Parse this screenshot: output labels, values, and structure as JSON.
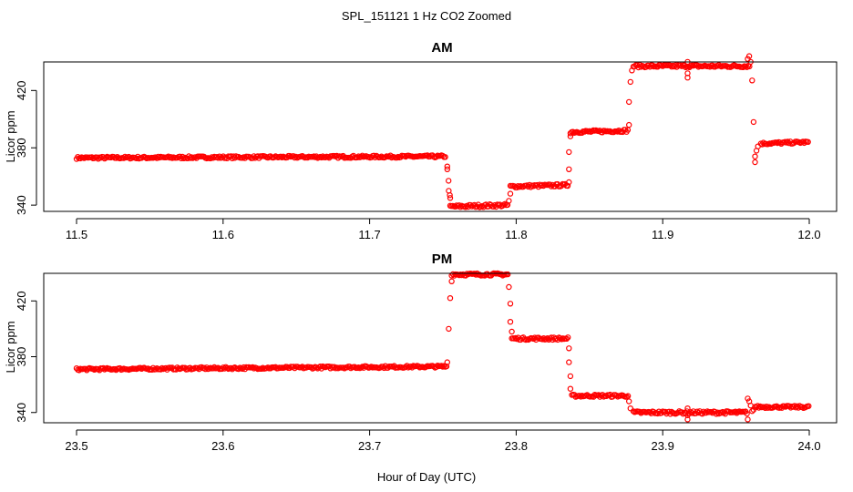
{
  "figure": {
    "title": "SPL_151121  1 Hz CO2 Zoomed",
    "xlabel": "Hour of Day (UTC)"
  },
  "chart_data": [
    {
      "type": "scatter",
      "title": "AM",
      "xlabel": "Hour of Day (UTC)",
      "ylabel": "Licor ppm",
      "xlim": [
        11.5,
        12.0
      ],
      "ylim": [
        335,
        445
      ],
      "xticks": [
        "11.5",
        "11.6",
        "11.7",
        "11.8",
        "11.9",
        "12.0"
      ],
      "yticks": [
        "340",
        "380",
        "420"
      ],
      "marker": "open-circle",
      "color": "#ff0000",
      "grid": false,
      "segments": [
        {
          "x": [
            11.5,
            11.752
          ],
          "y": [
            373,
            374
          ],
          "jitter": 0.8
        },
        {
          "x": [
            11.753,
            11.755
          ],
          "y": [
            367,
            344
          ],
          "jitter": 0
        },
        {
          "x": [
            11.755,
            11.795
          ],
          "y": [
            339,
            340
          ],
          "jitter": 1.0
        },
        {
          "x": [
            11.796,
            11.836
          ],
          "y": [
            353,
            354
          ],
          "jitter": 0.9
        },
        {
          "x": [
            11.837,
            11.877
          ],
          "y": [
            391,
            392
          ],
          "jitter": 0.9
        },
        {
          "x": [
            11.88,
            11.96
          ],
          "y": [
            437,
            437
          ],
          "jitter": 0.9
        },
        {
          "x": [
            11.967,
            12.0
          ],
          "y": [
            383,
            384
          ],
          "jitter": 0.8
        }
      ],
      "transition_points": [
        {
          "x": 11.753,
          "y": 365
        },
        {
          "x": 11.754,
          "y": 350
        },
        {
          "x": 11.755,
          "y": 345
        },
        {
          "x": 11.795,
          "y": 343
        },
        {
          "x": 11.796,
          "y": 348
        },
        {
          "x": 11.836,
          "y": 356
        },
        {
          "x": 11.836,
          "y": 365
        },
        {
          "x": 11.836,
          "y": 377
        },
        {
          "x": 11.837,
          "y": 388
        },
        {
          "x": 11.877,
          "y": 396
        },
        {
          "x": 11.877,
          "y": 412
        },
        {
          "x": 11.878,
          "y": 426
        },
        {
          "x": 11.879,
          "y": 434
        },
        {
          "x": 11.917,
          "y": 440
        },
        {
          "x": 11.917,
          "y": 432
        },
        {
          "x": 11.917,
          "y": 429
        },
        {
          "x": 11.958,
          "y": 442
        },
        {
          "x": 11.959,
          "y": 444
        },
        {
          "x": 11.96,
          "y": 440
        },
        {
          "x": 11.961,
          "y": 427
        },
        {
          "x": 11.962,
          "y": 398
        },
        {
          "x": 11.963,
          "y": 374
        },
        {
          "x": 11.963,
          "y": 370
        },
        {
          "x": 11.964,
          "y": 378
        },
        {
          "x": 11.965,
          "y": 381
        }
      ]
    },
    {
      "type": "scatter",
      "title": "PM",
      "xlabel": "Hour of Day (UTC)",
      "ylabel": "Licor ppm",
      "xlim": [
        23.5,
        24.0
      ],
      "ylim": [
        332,
        445
      ],
      "xticks": [
        "23.5",
        "23.6",
        "23.7",
        "23.8",
        "23.9",
        "24.0"
      ],
      "yticks": [
        "340",
        "380",
        "420"
      ],
      "marker": "open-circle",
      "color": "#ff0000",
      "grid": false,
      "segments": [
        {
          "x": [
            23.5,
            23.753
          ],
          "y": [
            371,
            373
          ],
          "jitter": 0.8
        },
        {
          "x": [
            23.756,
            23.795
          ],
          "y": [
            439,
            439
          ],
          "jitter": 0.9
        },
        {
          "x": [
            23.797,
            23.836
          ],
          "y": [
            393,
            393
          ],
          "jitter": 0.9
        },
        {
          "x": [
            23.838,
            23.877
          ],
          "y": [
            352,
            352
          ],
          "jitter": 0.9
        },
        {
          "x": [
            23.88,
            23.958
          ],
          "y": [
            340,
            340
          ],
          "jitter": 1.0
        },
        {
          "x": [
            23.963,
            24.0
          ],
          "y": [
            344,
            344
          ],
          "jitter": 0.8
        }
      ],
      "transition_points": [
        {
          "x": 23.753,
          "y": 376
        },
        {
          "x": 23.754,
          "y": 400
        },
        {
          "x": 23.755,
          "y": 422
        },
        {
          "x": 23.756,
          "y": 434
        },
        {
          "x": 23.795,
          "y": 430
        },
        {
          "x": 23.796,
          "y": 418
        },
        {
          "x": 23.796,
          "y": 405
        },
        {
          "x": 23.797,
          "y": 398
        },
        {
          "x": 23.836,
          "y": 386
        },
        {
          "x": 23.836,
          "y": 376
        },
        {
          "x": 23.837,
          "y": 366
        },
        {
          "x": 23.837,
          "y": 357
        },
        {
          "x": 23.877,
          "y": 348
        },
        {
          "x": 23.878,
          "y": 343
        },
        {
          "x": 23.917,
          "y": 343
        },
        {
          "x": 23.917,
          "y": 338
        },
        {
          "x": 23.917,
          "y": 335
        },
        {
          "x": 23.958,
          "y": 350
        },
        {
          "x": 23.959,
          "y": 348
        },
        {
          "x": 23.96,
          "y": 345
        },
        {
          "x": 23.958,
          "y": 335
        },
        {
          "x": 23.961,
          "y": 341
        },
        {
          "x": 23.962,
          "y": 342
        }
      ]
    }
  ]
}
